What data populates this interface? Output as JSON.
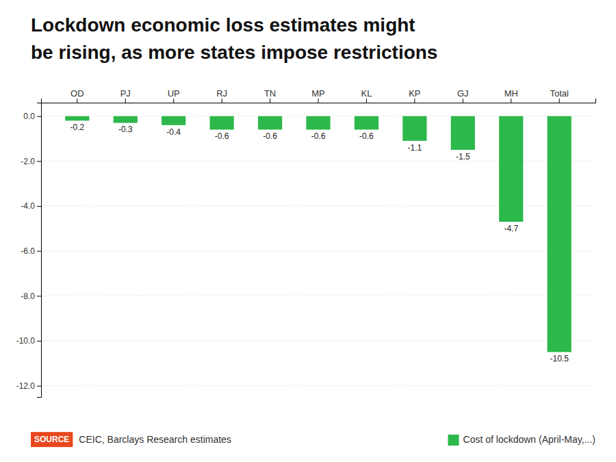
{
  "chart_data": {
    "type": "bar",
    "title": [
      "Lockdown economic loss estimates might",
      "be rising, as more states impose restrictions"
    ],
    "categories": [
      "OD",
      "PJ",
      "UP",
      "RJ",
      "TN",
      "MP",
      "KL",
      "KP",
      "GJ",
      "MH",
      "Total"
    ],
    "series": [
      {
        "name": "Cost of lockdown (April-May,...)",
        "color": "#2db84b",
        "values": [
          -0.2,
          -0.3,
          -0.4,
          -0.6,
          -0.6,
          -0.6,
          -0.6,
          -1.1,
          -1.5,
          -4.7,
          -10.5
        ]
      }
    ],
    "ylim": [
      -12.5,
      0.6
    ],
    "yticks": [
      {
        "value": 0.0,
        "label": "0.0"
      },
      {
        "value": -2.0,
        "label": "-2.0"
      },
      {
        "value": -4.0,
        "label": "-4.0"
      },
      {
        "value": -6.0,
        "label": "-6.0"
      },
      {
        "value": -8.0,
        "label": "-8.0"
      },
      {
        "value": -10.0,
        "label": "-10.0"
      },
      {
        "value": -12.0,
        "label": "-12.0"
      }
    ],
    "grid": true,
    "data_labels": true,
    "legend": "lower right",
    "annotations": [
      "SOURCE",
      "CEIC, Barclays Research estimates"
    ]
  }
}
